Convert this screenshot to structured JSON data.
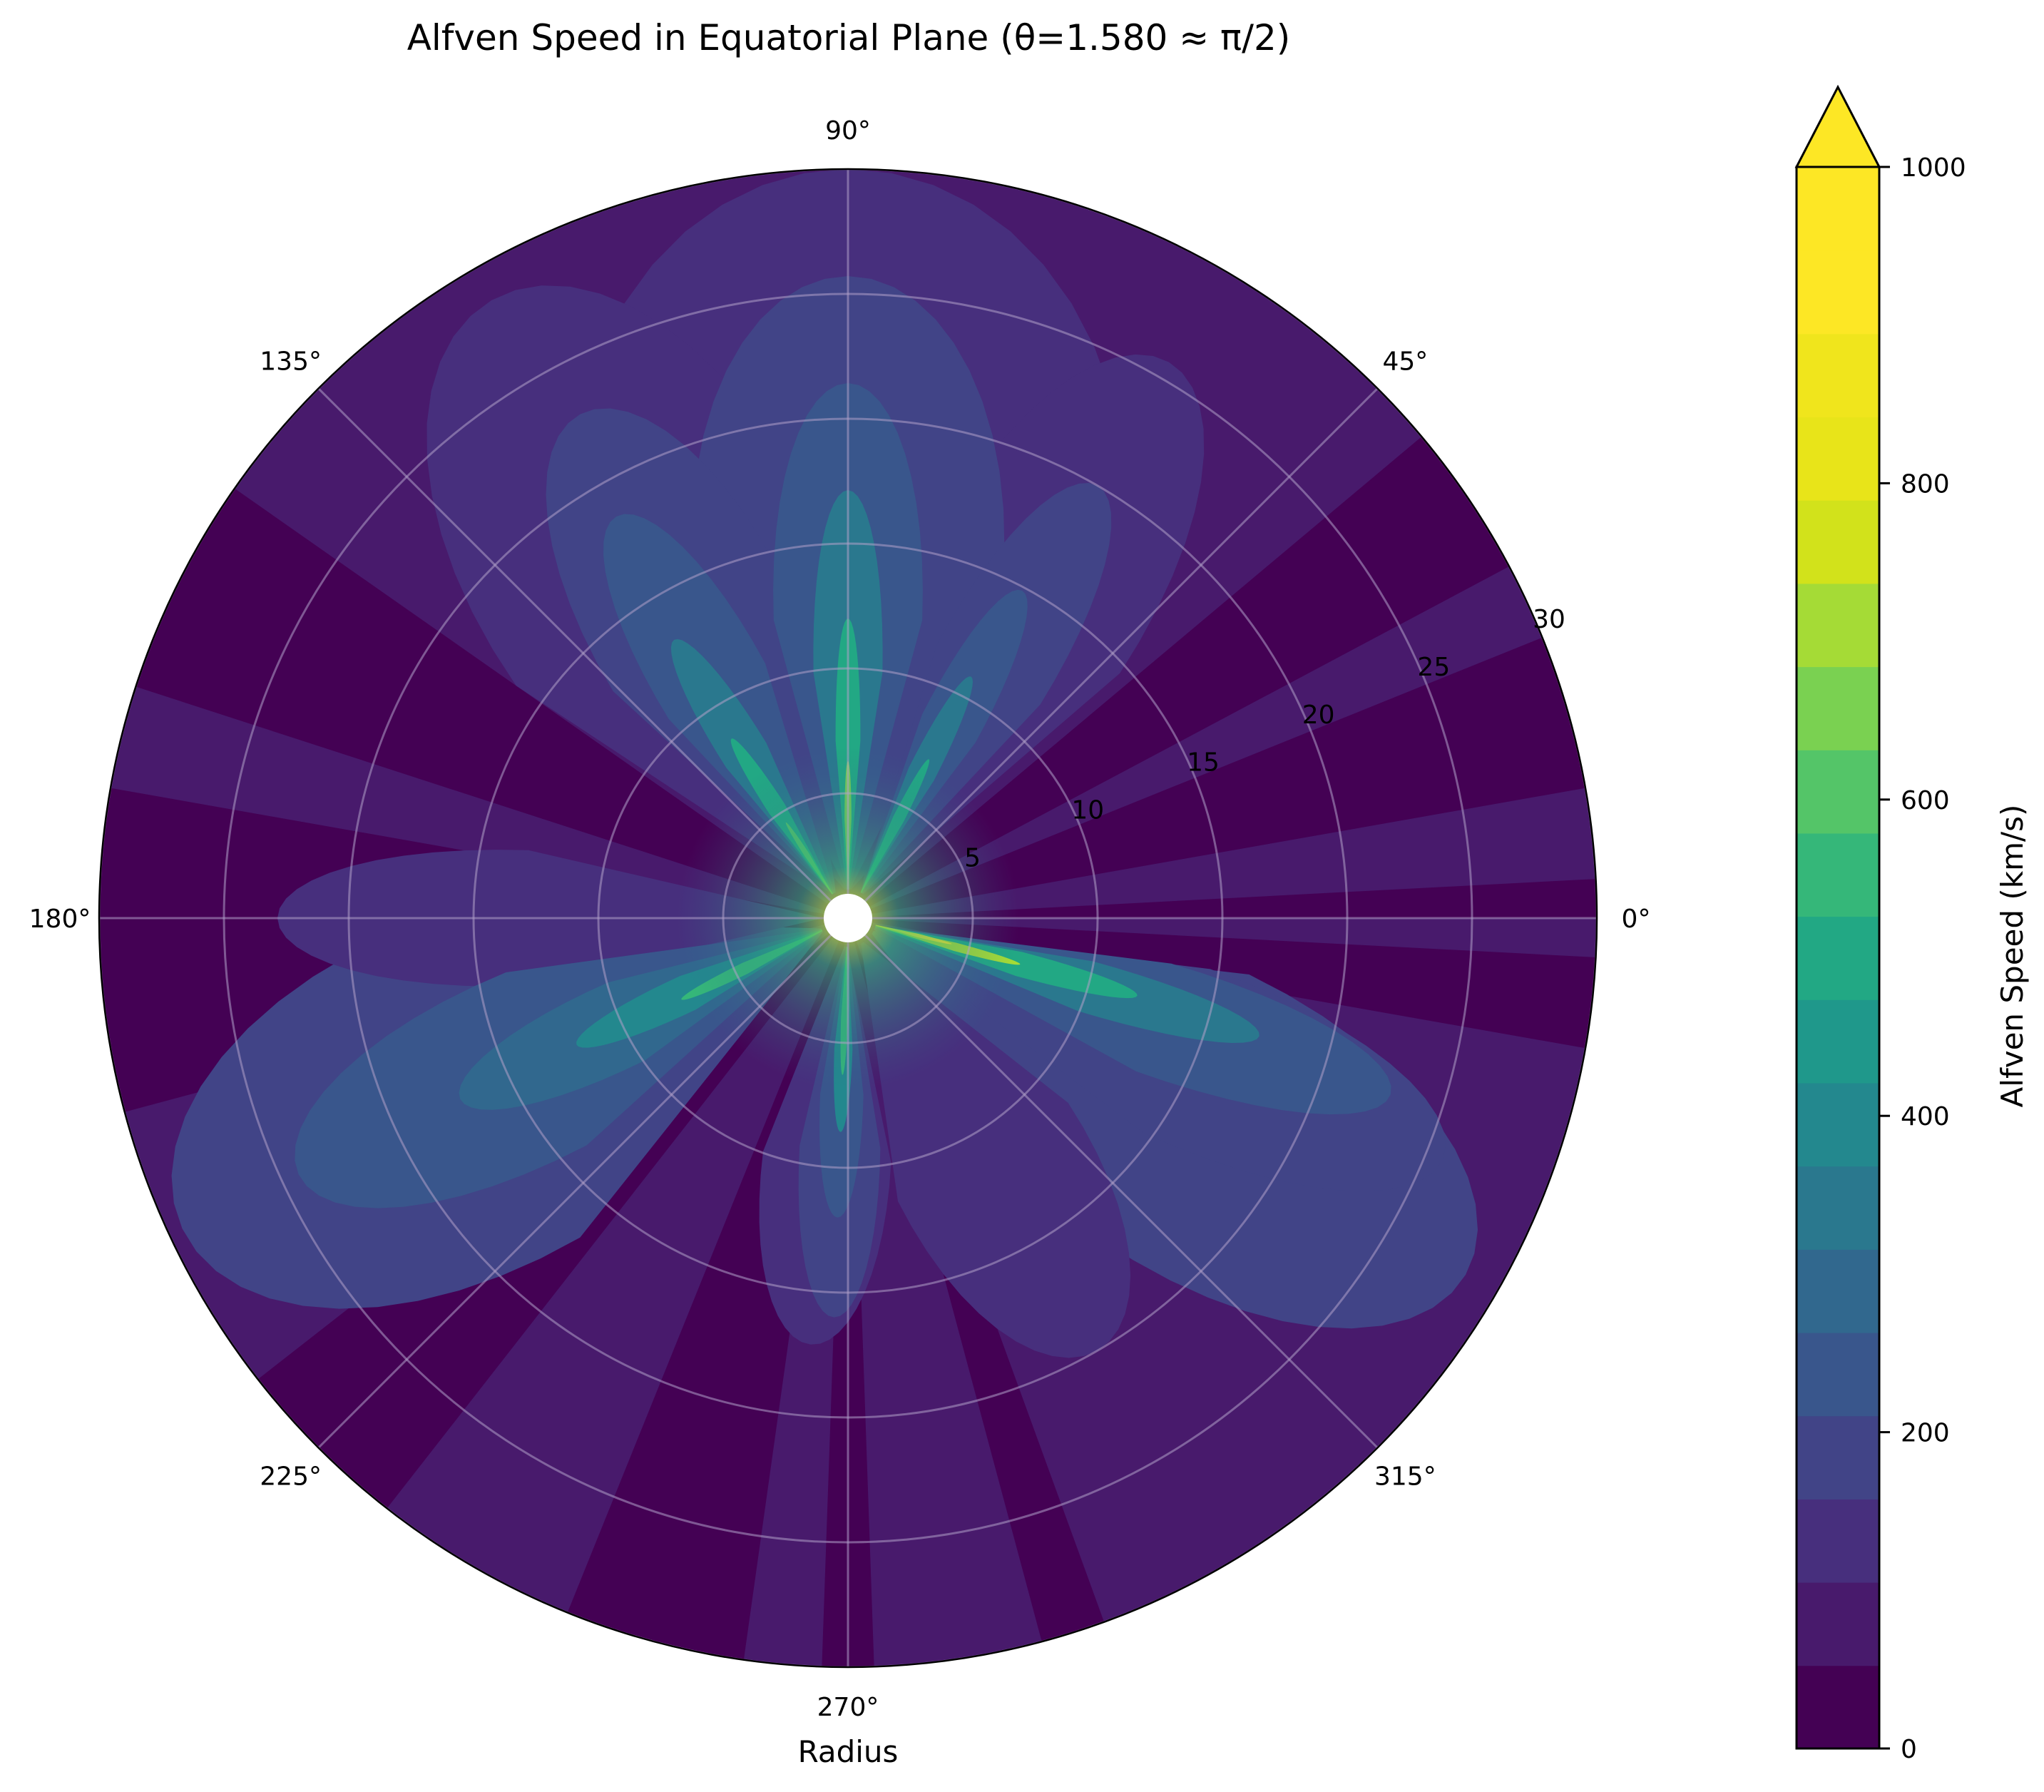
{
  "chart_data": {
    "type": "heatmap",
    "subtype": "polar_filled_contour",
    "title": "Alfven Speed in Equatorial Plane (θ=1.580 ≈ π/2)",
    "xlabel": "Radius",
    "ylabel": "",
    "angular_ticks": [
      "0°",
      "45°",
      "90°",
      "135°",
      "180°",
      "225°",
      "270°",
      "315°"
    ],
    "angular_tick_degrees": [
      0,
      45,
      90,
      135,
      180,
      225,
      270,
      315
    ],
    "radial_ticks": [
      5,
      10,
      15,
      20,
      25,
      30
    ],
    "radial_tick_labels": [
      "5",
      "10",
      "15",
      "20",
      "25",
      "30"
    ],
    "rlim": [
      1,
      30
    ],
    "grid": true,
    "colormap": "viridis",
    "colorbar": {
      "label": "Alfven Speed (km/s)",
      "ticks": [
        0,
        200,
        400,
        600,
        800,
        1000
      ],
      "tick_labels": [
        "0",
        "200",
        "400",
        "600",
        "800",
        "1000"
      ],
      "vmin": 0,
      "vmax": 1000,
      "extend": "max",
      "n_levels": 19
    },
    "features": [
      {
        "description": "bright radial jet (yellow, >900 km/s near origin)",
        "angle_deg": 345,
        "r_extent": [
          1,
          27
        ]
      },
      {
        "description": "strong jet (green)",
        "angle_deg": 90,
        "r_extent": [
          1,
          30
        ]
      },
      {
        "description": "strong jet (green)",
        "angle_deg": 123,
        "r_extent": [
          1,
          22
        ]
      },
      {
        "description": "strong jet (green)",
        "angle_deg": 63,
        "r_extent": [
          1,
          18
        ]
      },
      {
        "description": "jet (teal)",
        "angle_deg": 205,
        "r_extent": [
          1,
          22
        ]
      },
      {
        "description": "jet (teal)",
        "angle_deg": 268,
        "r_extent": [
          1,
          12
        ]
      },
      {
        "description": "low-speed dark lanes (<50 km/s)",
        "angle_deg": [
          22,
          33,
          150,
          168,
          193,
          236,
          278,
          285
        ]
      }
    ]
  },
  "colors": {
    "levels": [
      "#440154",
      "#481a6c",
      "#472f7d",
      "#414487",
      "#39568c",
      "#31688e",
      "#2a788e",
      "#23888e",
      "#1f988b",
      "#22a884",
      "#35b779",
      "#54c568",
      "#7ad151",
      "#a5db36",
      "#d2e21b",
      "#e8e419",
      "#f0e51c",
      "#fde725",
      "#fde725"
    ],
    "extend": "#fde725",
    "grid": "#b0a0c8",
    "background": "#ffffff"
  }
}
